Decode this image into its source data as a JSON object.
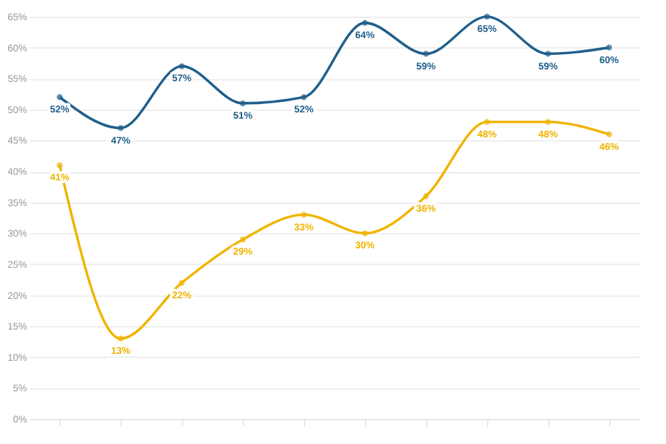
{
  "chart_data": {
    "type": "line",
    "categories": [
      null,
      null,
      null,
      null,
      null,
      null,
      null,
      null,
      null,
      null
    ],
    "series": [
      {
        "color": "#1f5f8b",
        "values": [
          52,
          47,
          57,
          51,
          52,
          64,
          59,
          65,
          59,
          60
        ],
        "value_labels": [
          "52%",
          "47%",
          "57%",
          "51%",
          "52%",
          "64%",
          "59%",
          "65%",
          "59%",
          "60%"
        ]
      },
      {
        "color": "#f0b400",
        "values": [
          41,
          13,
          22,
          29,
          33,
          30,
          36,
          48,
          48,
          46
        ],
        "value_labels": [
          "41%",
          "13%",
          "22%",
          "29%",
          "33%",
          "30%",
          "36%",
          "48%",
          "48%",
          "46%"
        ]
      }
    ],
    "ylim": [
      0,
      65
    ],
    "yticks": [
      {
        "value": 0,
        "label": "0%"
      },
      {
        "value": 5,
        "label": "5%"
      },
      {
        "value": 10,
        "label": "10%"
      },
      {
        "value": 15,
        "label": "15%"
      },
      {
        "value": 20,
        "label": "20%"
      },
      {
        "value": 25,
        "label": "25%"
      },
      {
        "value": 30,
        "label": "30%"
      },
      {
        "value": 35,
        "label": "35%"
      },
      {
        "value": 40,
        "label": "40%"
      },
      {
        "value": 45,
        "label": "45%"
      },
      {
        "value": 50,
        "label": "50%"
      },
      {
        "value": 55,
        "label": "55%"
      },
      {
        "value": 60,
        "label": "60%"
      },
      {
        "value": 65,
        "label": "65%"
      }
    ],
    "grid": "y",
    "marker": "circle",
    "line_style": "solid",
    "tick_labels": "y"
  }
}
